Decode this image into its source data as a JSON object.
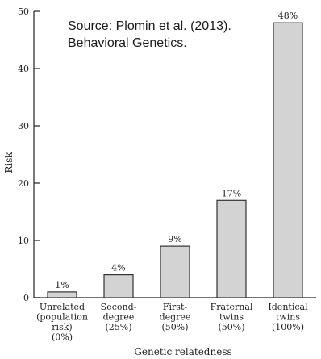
{
  "source_note": {
    "line1": "Source: Plomin et al. (2013).",
    "line2": "Behavioral Genetics."
  },
  "chart_data": {
    "type": "bar",
    "xlabel": "Genetic relatedness",
    "ylabel": "Risk",
    "ylim": [
      0,
      50
    ],
    "yticks": [
      0,
      10,
      20,
      30,
      40,
      50
    ],
    "grid": false,
    "categories": [
      [
        "Unrelated",
        "(population",
        "risk)",
        "(0%)"
      ],
      [
        "Second-",
        "degree",
        "(25%)"
      ],
      [
        "First-",
        "degree",
        "(50%)"
      ],
      [
        "Fraternal",
        "twins",
        "(50%)"
      ],
      [
        "Identical",
        "twins",
        "(100%)"
      ]
    ],
    "values": [
      1,
      4,
      9,
      17,
      48
    ],
    "data_labels": [
      "1%",
      "4%",
      "9%",
      "17%",
      "48%"
    ],
    "bar_color": "#d3d3d3",
    "bar_edge_color": "#333333"
  }
}
